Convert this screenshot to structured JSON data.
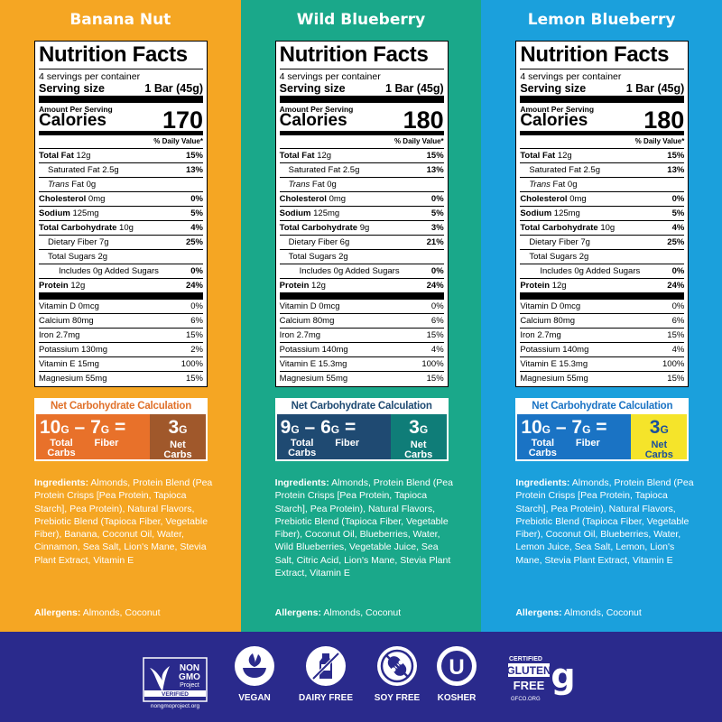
{
  "products": [
    {
      "flavor": "Banana Nut",
      "nf_title": "Nutrition Facts",
      "servings_per_container": "4 servings per container",
      "serving_size_label": "Serving size",
      "serving_size_value": "1 Bar (45g)",
      "amount_per_serving": "Amount Per Serving",
      "calories_label": "Calories",
      "calories": "170",
      "dv_header": "% Daily Value*",
      "total_fat": {
        "label": "Total Fat",
        "amount": "12g",
        "dv": "15%"
      },
      "saturated_fat": {
        "label": "Saturated Fat 2.5g",
        "dv": "13%"
      },
      "trans_fat": {
        "italic": "Trans",
        "rest": "Fat 0g"
      },
      "cholesterol": {
        "label": "Cholesterol",
        "amount": "0mg",
        "dv": "0%"
      },
      "sodium": {
        "label": "Sodium",
        "amount": "125mg",
        "dv": "5%"
      },
      "total_carb": {
        "label": "Total Carbohydrate",
        "amount": "10g",
        "dv": "4%"
      },
      "fiber": {
        "label": "Dietary Fiber 7g",
        "dv": "25%"
      },
      "total_sugars": {
        "label": "Total Sugars 2g"
      },
      "added_sugars": {
        "label": "Includes 0g Added Sugars",
        "dv": "0%"
      },
      "protein": {
        "label": "Protein",
        "amount": "12g",
        "dv": "24%"
      },
      "vitamins": [
        {
          "label": "Vitamin D 0mcg",
          "dv": "0%"
        },
        {
          "label": "Calcium 80mg",
          "dv": "6%"
        },
        {
          "label": "Iron 2.7mg",
          "dv": "15%"
        },
        {
          "label": "Potassium 130mg",
          "dv": "2%"
        },
        {
          "label": "Vitamin E 15mg",
          "dv": "100%"
        },
        {
          "label": "Magnesium 55mg",
          "dv": "15%"
        }
      ],
      "net_carb": {
        "title": "Net Carbohydrate Calculation",
        "total_num": "10",
        "fiber_num": "7",
        "net_num": "3",
        "unit": "G",
        "minus": "–",
        "equals": "=",
        "total_label_1": "Total",
        "total_label_2": "Carbs",
        "fiber_label": "Fiber",
        "net_label_1": "Net",
        "net_label_2": "Carbs",
        "title_color": "#e0712a",
        "left_bg": "#e8712a",
        "right_bg": "#a0582b",
        "right_text": "#ffffff"
      },
      "ingredients_label": "Ingredients:",
      "ingredients": " Almonds, Protein Blend (Pea Protein Crisps [Pea Protein, Tapioca Starch], Pea Protein), Natural Flavors, Prebiotic Blend (Tapioca Fiber, Vegetable Fiber), Banana, Coconut Oil, Water, Cinnamon, Sea Salt, Lion's Mane, Stevia Plant Extract, Vitamin E",
      "allergens_label": "Allergens:",
      "allergens": " Almonds, Coconut"
    },
    {
      "flavor": "Wild Blueberry",
      "nf_title": "Nutrition Facts",
      "servings_per_container": "4 servings per container",
      "serving_size_label": "Serving size",
      "serving_size_value": "1 Bar (45g)",
      "amount_per_serving": "Amount Per Serving",
      "calories_label": "Calories",
      "calories": "180",
      "dv_header": "% Daily Value*",
      "total_fat": {
        "label": "Total Fat",
        "amount": "12g",
        "dv": "15%"
      },
      "saturated_fat": {
        "label": "Saturated Fat 2.5g",
        "dv": "13%"
      },
      "trans_fat": {
        "italic": "Trans",
        "rest": "Fat 0g"
      },
      "cholesterol": {
        "label": "Cholesterol",
        "amount": "0mg",
        "dv": "0%"
      },
      "sodium": {
        "label": "Sodium",
        "amount": "125mg",
        "dv": "5%"
      },
      "total_carb": {
        "label": "Total Carbohydrate",
        "amount": "9g",
        "dv": "3%"
      },
      "fiber": {
        "label": "Dietary Fiber 6g",
        "dv": "21%"
      },
      "total_sugars": {
        "label": "Total Sugars 2g"
      },
      "added_sugars": {
        "label": "Includes 0g Added Sugars",
        "dv": "0%"
      },
      "protein": {
        "label": "Protein",
        "amount": "12g",
        "dv": "24%"
      },
      "vitamins": [
        {
          "label": "Vitamin D 0mcg",
          "dv": "0%"
        },
        {
          "label": "Calcium 80mg",
          "dv": "6%"
        },
        {
          "label": "Iron 2.7mg",
          "dv": "15%"
        },
        {
          "label": "Potassium 140mg",
          "dv": "4%"
        },
        {
          "label": "Vitamin E 15.3mg",
          "dv": "100%"
        },
        {
          "label": "Magnesium 55mg",
          "dv": "15%"
        }
      ],
      "net_carb": {
        "title": "Net Carbohydrate Calculation",
        "total_num": "9",
        "fiber_num": "6",
        "net_num": "3",
        "unit": "G",
        "minus": "–",
        "equals": "=",
        "total_label_1": "Total",
        "total_label_2": "Carbs",
        "fiber_label": "Fiber",
        "net_label_1": "Net",
        "net_label_2": "Carbs",
        "title_color": "#1f4a72",
        "left_bg": "#1f4a72",
        "right_bg": "#0f7d78",
        "right_text": "#ffffff"
      },
      "ingredients_label": "Ingredients:",
      "ingredients": " Almonds, Protein Blend (Pea Protein Crisps [Pea Protein, Tapioca Starch], Pea Protein), Natural Flavors, Prebiotic Blend (Tapioca Fiber, Vegetable Fiber), Coconut Oil, Blueberries, Water, Wild Blueberries, Vegetable Juice, Sea Salt, Citric Acid, Lion's Mane, Stevia Plant Extract, Vitamin E",
      "allergens_label": "Allergens:",
      "allergens": " Almonds, Coconut"
    },
    {
      "flavor": "Lemon Blueberry",
      "nf_title": "Nutrition Facts",
      "servings_per_container": "4 servings per container",
      "serving_size_label": "Serving size",
      "serving_size_value": "1 Bar (45g)",
      "amount_per_serving": "Amount Per Serving",
      "calories_label": "Calories",
      "calories": "180",
      "dv_header": "% Daily Value*",
      "total_fat": {
        "label": "Total Fat",
        "amount": "12g",
        "dv": "15%"
      },
      "saturated_fat": {
        "label": "Saturated Fat 2.5g",
        "dv": "13%"
      },
      "trans_fat": {
        "italic": "Trans",
        "rest": "Fat 0g"
      },
      "cholesterol": {
        "label": "Cholesterol",
        "amount": "0mg",
        "dv": "0%"
      },
      "sodium": {
        "label": "Sodium",
        "amount": "125mg",
        "dv": "5%"
      },
      "total_carb": {
        "label": "Total Carbohydrate",
        "amount": "10g",
        "dv": "4%"
      },
      "fiber": {
        "label": "Dietary Fiber 7g",
        "dv": "25%"
      },
      "total_sugars": {
        "label": "Total Sugars 2g"
      },
      "added_sugars": {
        "label": "Includes 0g Added Sugars",
        "dv": "0%"
      },
      "protein": {
        "label": "Protein",
        "amount": "12g",
        "dv": "24%"
      },
      "vitamins": [
        {
          "label": "Vitamin D 0mcg",
          "dv": "0%"
        },
        {
          "label": "Calcium 80mg",
          "dv": "6%"
        },
        {
          "label": "Iron 2.7mg",
          "dv": "15%"
        },
        {
          "label": "Potassium 140mg",
          "dv": "4%"
        },
        {
          "label": "Vitamin E 15.3mg",
          "dv": "100%"
        },
        {
          "label": "Magnesium 55mg",
          "dv": "15%"
        }
      ],
      "net_carb": {
        "title": "Net Carbohydrate Calculation",
        "total_num": "10",
        "fiber_num": "7",
        "net_num": "3",
        "unit": "G",
        "minus": "–",
        "equals": "=",
        "total_label_1": "Total",
        "total_label_2": "Carbs",
        "fiber_label": "Fiber",
        "net_label_1": "Net",
        "net_label_2": "Carbs",
        "title_color": "#1a73c4",
        "left_bg": "#1a73c4",
        "right_bg": "#f5e42a",
        "right_text": "#1a4f9c"
      },
      "ingredients_label": "Ingredients:",
      "ingredients": " Almonds, Protein Blend (Pea Protein Crisps [Pea Protein, Tapioca Starch], Pea Protein), Natural Flavors, Prebiotic Blend (Tapioca Fiber, Vegetable Fiber), Coconut Oil, Blueberries, Water, Lemon Juice, Sea Salt, Lemon, Lion's Mane, Stevia Plant Extract, Vitamin E",
      "allergens_label": "Allergens:",
      "allergens": " Almonds, Coconut"
    }
  ],
  "certifications": {
    "non_gmo": {
      "line1": "NON",
      "line2": "GMO",
      "line3": "Project",
      "line4": "VERIFIED",
      "line5": "nongmoproject.org",
      "icon": "non-gmo-butterfly-icon"
    },
    "vegan": {
      "label": "VEGAN",
      "icon": "leaf-bowl-icon"
    },
    "dairy_free": {
      "label": "DAIRY FREE",
      "icon": "milk-bottle-crossed-icon"
    },
    "soy_free": {
      "label": "SOY FREE",
      "icon": "soybean-crossed-icon"
    },
    "kosher": {
      "label": "KOSHER",
      "letter": "U",
      "icon": "kosher-u-icon"
    },
    "gluten_free": {
      "line1": "CERTIFIED",
      "line2": "GLUTEN",
      "line3": "FREE",
      "letter": "g",
      "line4": "GFCO.ORG",
      "icon": "gluten-free-g-icon"
    }
  },
  "colors": {
    "banana_bg": "#f5a623",
    "wild_blueberry_bg": "#1aa88a",
    "lemon_blueberry_bg": "#1ba0dc",
    "footer_bg": "#2a2a8c"
  }
}
